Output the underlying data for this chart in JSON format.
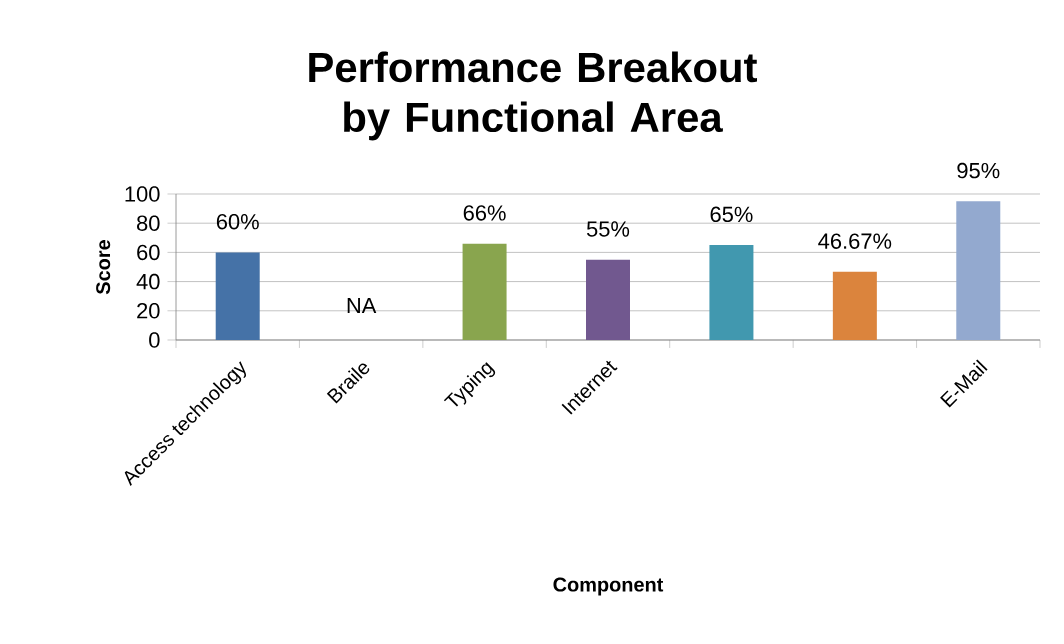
{
  "chart_data": {
    "type": "bar",
    "title": "Performance Breakout by Functional Area",
    "xlabel": "Component",
    "ylabel": "Score",
    "categories": [
      "Access technology",
      "Braile",
      "Typing",
      "Internet",
      null,
      null,
      "E-Mail"
    ],
    "values": [
      60,
      null,
      66,
      55,
      65,
      46.67,
      95
    ],
    "colors": [
      "#4572a7",
      "#4572a7",
      "#89a54e",
      "#71588f",
      "#4198af",
      "#db843d",
      "#93a9cf"
    ],
    "value_labels": [
      "60%",
      "NA",
      "66%",
      "55%",
      "65%",
      "46.67%",
      "95%"
    ],
    "ylim": [
      0,
      100
    ],
    "yticks": [
      0,
      20,
      40,
      60,
      80,
      100
    ],
    "grid": "y"
  }
}
